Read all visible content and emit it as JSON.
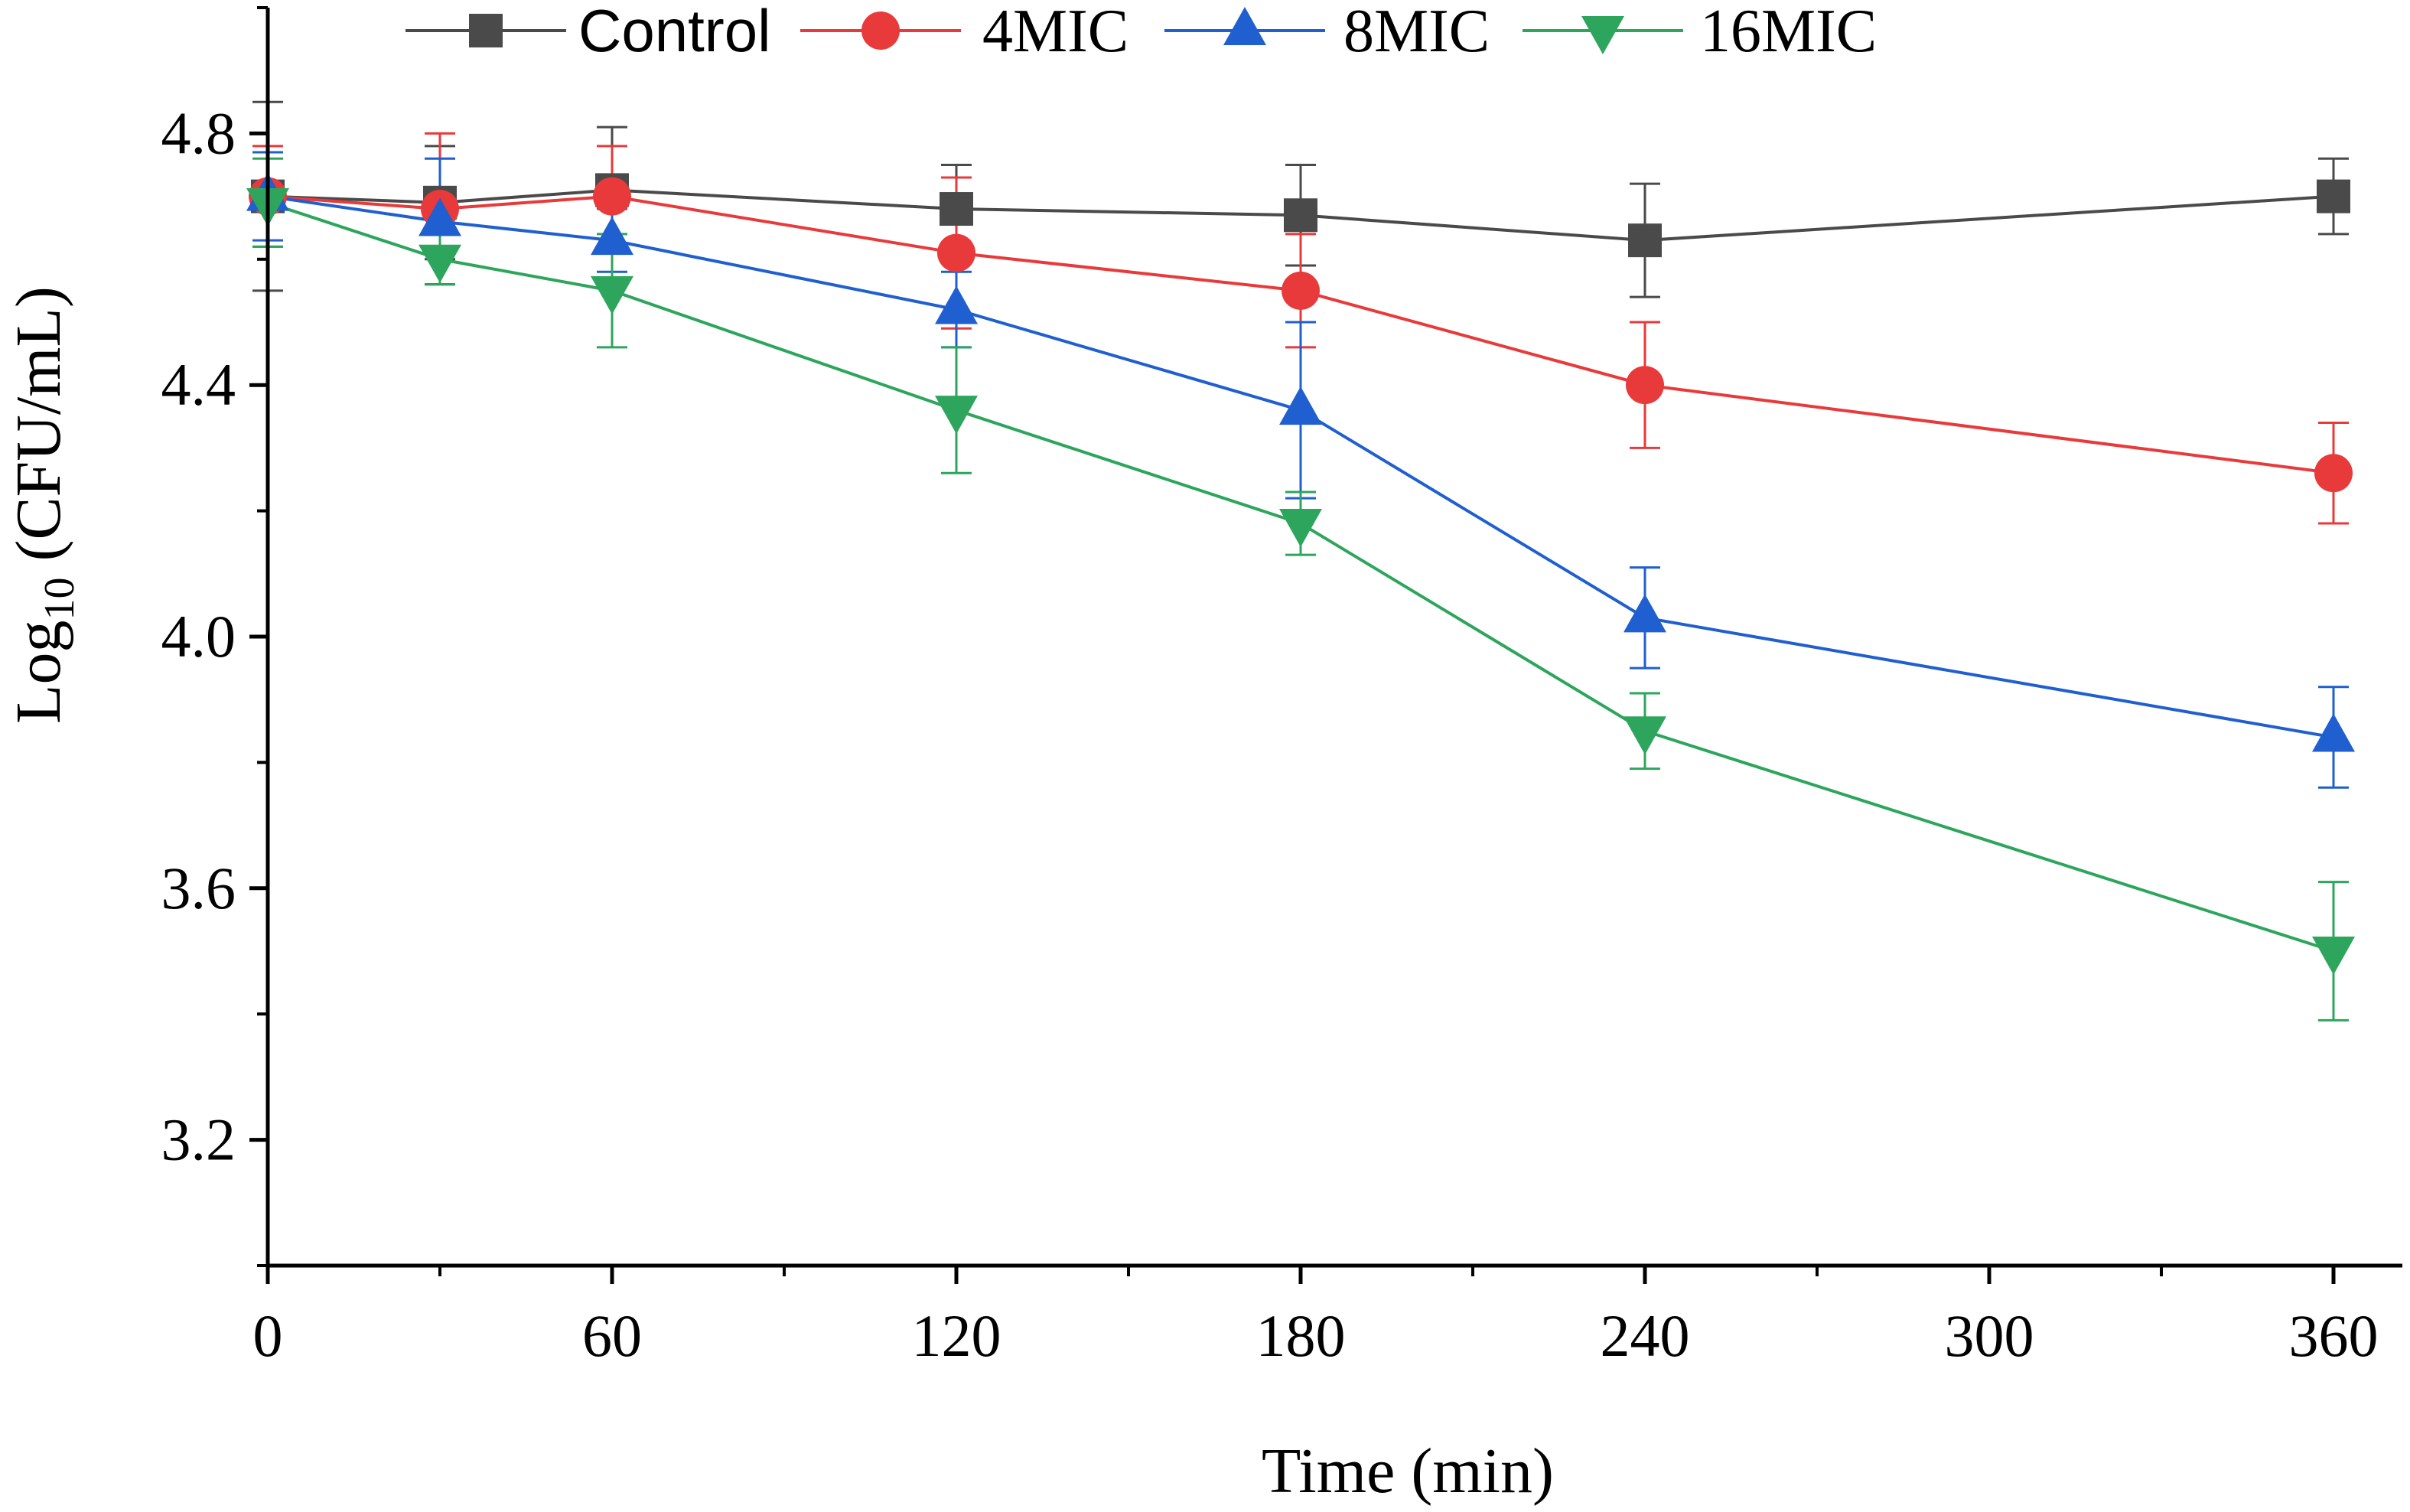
{
  "chart_data": {
    "type": "line",
    "title": "",
    "xlabel": "Time (min)",
    "ylabel_main": "Log",
    "ylabel_sub": "10",
    "ylabel_rest": " (CFU/mL)",
    "xlim": [
      0,
      370
    ],
    "ylim": [
      3.0,
      5.0
    ],
    "x_ticks": [
      0,
      60,
      120,
      180,
      240,
      300,
      360
    ],
    "x_tick_labels": [
      "0",
      "60",
      "120",
      "180",
      "240",
      "300",
      "360"
    ],
    "y_ticks": [
      3.2,
      3.6,
      4.0,
      4.4,
      4.8
    ],
    "y_tick_labels": [
      "3.2",
      "3.6",
      "4.0",
      "4.4",
      "4.8"
    ],
    "x": [
      0,
      30,
      60,
      120,
      180,
      240,
      360
    ],
    "series": [
      {
        "name": "Control",
        "color": "#4a4a4a",
        "marker": "square",
        "values": [
          4.7,
          4.69,
          4.71,
          4.68,
          4.67,
          4.63,
          4.7
        ],
        "errors": [
          0.15,
          0.09,
          0.1,
          0.07,
          0.08,
          0.09,
          0.06
        ]
      },
      {
        "name": "4MIC",
        "color": "#e83a3a",
        "marker": "circle",
        "values": [
          4.7,
          4.68,
          4.7,
          4.61,
          4.55,
          4.4,
          4.26
        ],
        "errors": [
          0.08,
          0.12,
          0.08,
          0.12,
          0.09,
          0.1,
          0.08
        ]
      },
      {
        "name": "8MIC",
        "color": "#1f5fd0",
        "marker": "triangle-up",
        "values": [
          4.7,
          4.66,
          4.63,
          4.52,
          4.36,
          4.03,
          3.84
        ],
        "errors": [
          0.07,
          0.1,
          0.05,
          0.06,
          0.14,
          0.08,
          0.08
        ]
      },
      {
        "name": "16MIC",
        "color": "#2ea55c",
        "marker": "triangle-down",
        "values": [
          4.69,
          4.6,
          4.55,
          4.36,
          4.18,
          3.85,
          3.5
        ],
        "errors": [
          0.07,
          0.04,
          0.09,
          0.1,
          0.05,
          0.06,
          0.11
        ]
      }
    ],
    "legend_position": "top"
  }
}
